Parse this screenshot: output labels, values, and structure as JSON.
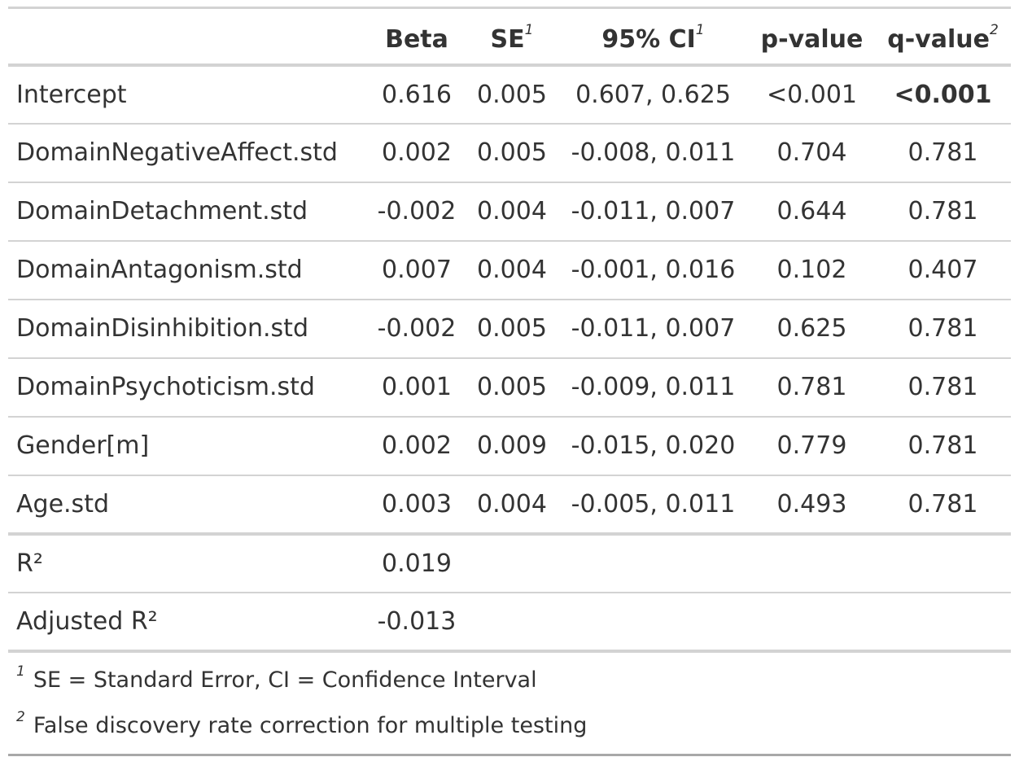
{
  "table": {
    "headers": {
      "label": "",
      "beta": "Beta",
      "se": "SE",
      "se_mark": "1",
      "ci": "95% CI",
      "ci_mark": "1",
      "p": "p-value",
      "q": "q-value",
      "q_mark": "2"
    },
    "rows": [
      {
        "label": "Intercept",
        "beta": "0.616",
        "se": "0.005",
        "ci": "0.607, 0.625",
        "p": "<0.001",
        "q": "<0.001",
        "q_bold": true
      },
      {
        "label": "DomainNegativeAffect.std",
        "beta": "0.002",
        "se": "0.005",
        "ci": "-0.008, 0.011",
        "p": "0.704",
        "q": "0.781"
      },
      {
        "label": "DomainDetachment.std",
        "beta": "-0.002",
        "se": "0.004",
        "ci": "-0.011, 0.007",
        "p": "0.644",
        "q": "0.781"
      },
      {
        "label": "DomainAntagonism.std",
        "beta": "0.007",
        "se": "0.004",
        "ci": "-0.001, 0.016",
        "p": "0.102",
        "q": "0.407"
      },
      {
        "label": "DomainDisinhibition.std",
        "beta": "-0.002",
        "se": "0.005",
        "ci": "-0.011, 0.007",
        "p": "0.625",
        "q": "0.781"
      },
      {
        "label": "DomainPsychoticism.std",
        "beta": "0.001",
        "se": "0.005",
        "ci": "-0.009, 0.011",
        "p": "0.781",
        "q": "0.781"
      },
      {
        "label": "Gender[m]",
        "beta": "0.002",
        "se": "0.009",
        "ci": "-0.015, 0.020",
        "p": "0.779",
        "q": "0.781"
      },
      {
        "label": "Age.std",
        "beta": "0.003",
        "se": "0.004",
        "ci": "-0.005, 0.011",
        "p": "0.493",
        "q": "0.781"
      }
    ],
    "stats": [
      {
        "label": "R²",
        "beta": "0.019"
      },
      {
        "label": "Adjusted R²",
        "beta": "-0.013"
      }
    ]
  },
  "footnotes": [
    {
      "mark": "1",
      "text": "SE = Standard Error, CI = Confidence Interval"
    },
    {
      "mark": "2",
      "text": "False discovery rate correction for multiple testing"
    }
  ]
}
